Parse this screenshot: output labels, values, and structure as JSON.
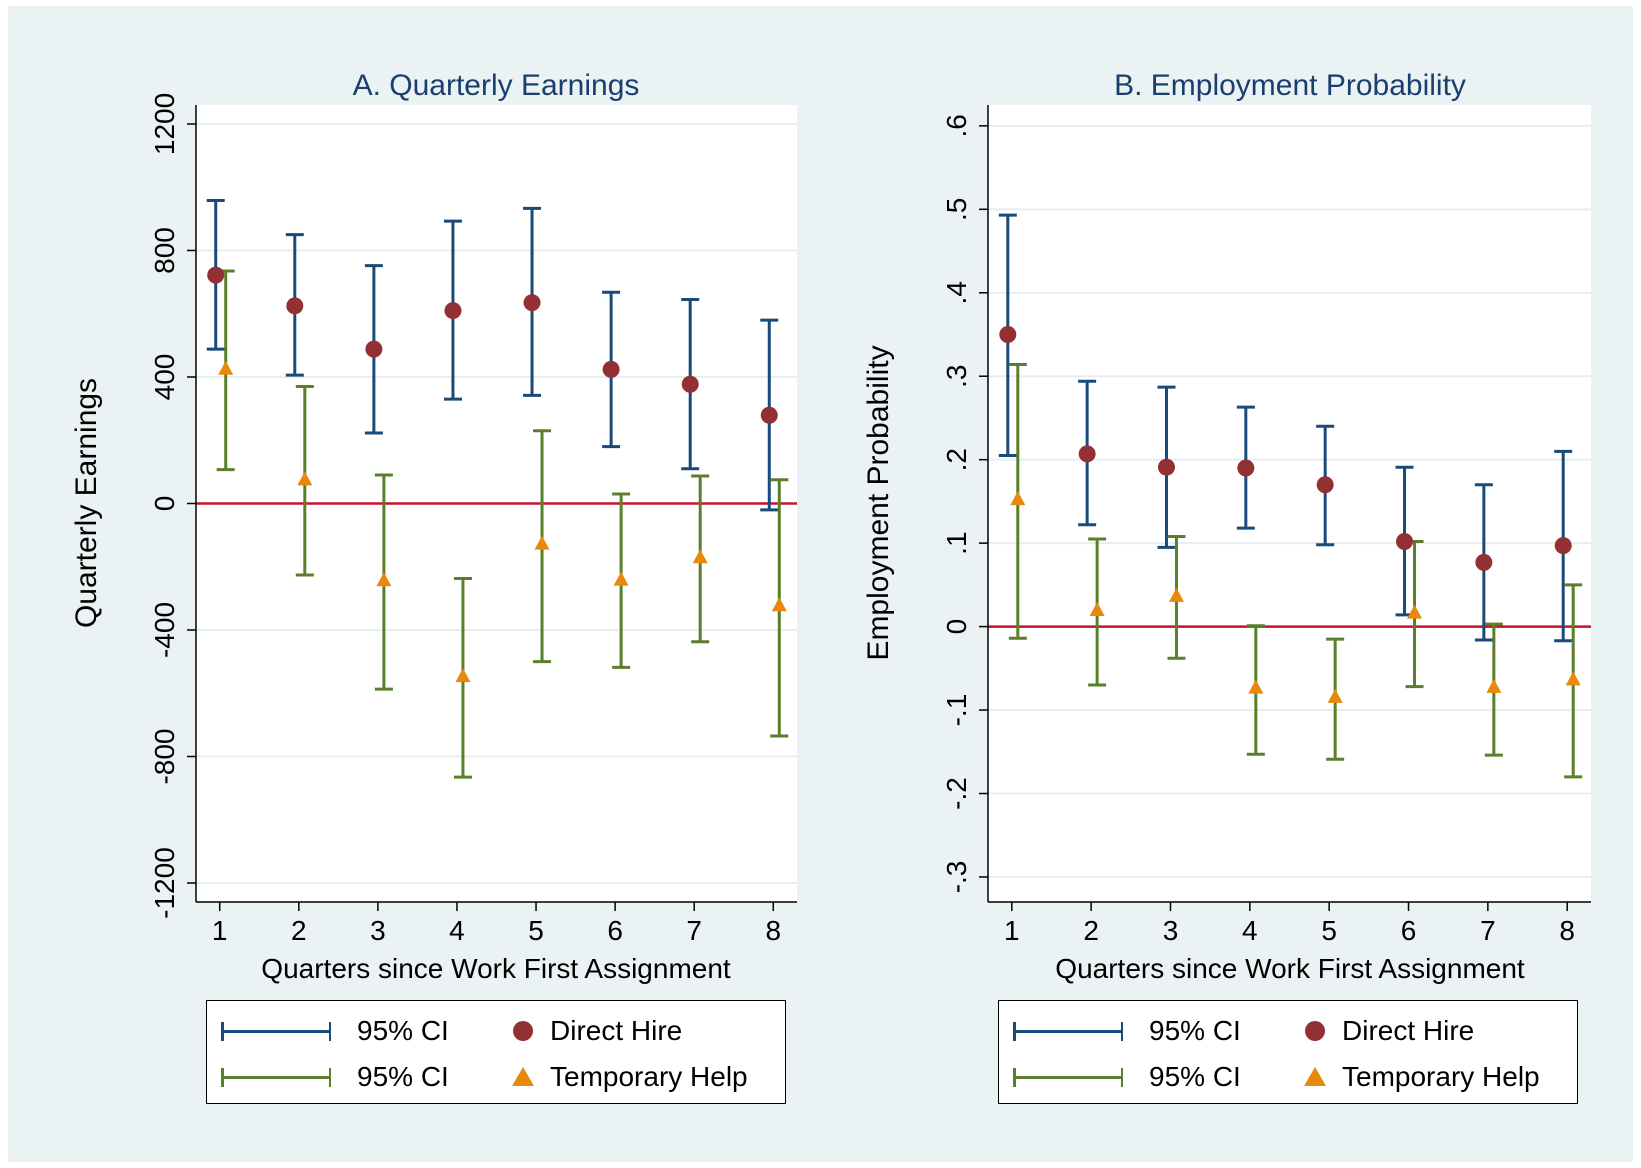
{
  "colors": {
    "outer_bg": "#eaf2f3",
    "plot_bg": "#ffffff",
    "grid": "#e5eff1",
    "zero_line": "#c8102e",
    "direct_ci": "#1a4a7a",
    "temp_ci": "#5a7f2b",
    "direct_marker": "#923034",
    "temp_marker": "#e8890c",
    "title": "#1a3f6f"
  },
  "chart_data": [
    {
      "type": "scatter",
      "title": "A. Quarterly Earnings",
      "xlabel": "Quarters since Work First Assignment",
      "ylabel": "Quarterly Earnings",
      "x": [
        1,
        2,
        3,
        4,
        5,
        6,
        7,
        8
      ],
      "xlim": [
        0.7,
        8.3
      ],
      "ylim": [
        -1260,
        1260
      ],
      "yticks": [
        -1200,
        -800,
        -400,
        0,
        400,
        800,
        1200
      ],
      "ytick_labels": [
        "-1200",
        "-800",
        "-400",
        "0",
        "400",
        "800",
        "1200"
      ],
      "xtick_labels": [
        "1",
        "2",
        "3",
        "4",
        "5",
        "6",
        "7",
        "8"
      ],
      "grid": true,
      "reference_line_y": 0,
      "series": [
        {
          "name": "Direct Hire",
          "marker": "circle",
          "values": [
            722,
            625,
            488,
            610,
            635,
            424,
            377,
            279
          ],
          "ci_low": [
            488,
            406,
            223,
            330,
            342,
            180,
            110,
            -20
          ],
          "ci_high": [
            958,
            850,
            752,
            893,
            933,
            668,
            645,
            580
          ]
        },
        {
          "name": "Temporary Help",
          "marker": "triangle",
          "values": [
            424,
            74,
            -245,
            -548,
            -129,
            -243,
            -172,
            -324
          ],
          "ci_low": [
            107,
            -226,
            -587,
            -865,
            -500,
            -518,
            -437,
            -735
          ],
          "ci_high": [
            735,
            370,
            90,
            -237,
            230,
            30,
            87,
            75
          ]
        }
      ],
      "legend": [
        {
          "label": "95% CI",
          "series": "Direct Hire CI"
        },
        {
          "label": "Direct Hire"
        },
        {
          "label": "95% CI",
          "series": "Temporary Help CI"
        },
        {
          "label": "Temporary Help"
        }
      ]
    },
    {
      "type": "scatter",
      "title": "B. Employment Probability",
      "xlabel": "Quarters since Work First Assignment",
      "ylabel": "Employment Probability",
      "x": [
        1,
        2,
        3,
        4,
        5,
        6,
        7,
        8
      ],
      "xlim": [
        0.7,
        8.3
      ],
      "ylim": [
        -0.33,
        0.625
      ],
      "yticks": [
        -0.3,
        -0.2,
        -0.1,
        0,
        0.1,
        0.2,
        0.3,
        0.4,
        0.5,
        0.6
      ],
      "ytick_labels": [
        "-.3",
        "-.2",
        "-.1",
        "0",
        ".1",
        ".2",
        ".3",
        ".4",
        ".5",
        ".6"
      ],
      "xtick_labels": [
        "1",
        "2",
        "3",
        "4",
        "5",
        "6",
        "7",
        "8"
      ],
      "grid": true,
      "reference_line_y": 0,
      "series": [
        {
          "name": "Direct Hire",
          "marker": "circle",
          "values": [
            0.35,
            0.207,
            0.191,
            0.19,
            0.17,
            0.102,
            0.077,
            0.097
          ],
          "ci_low": [
            0.205,
            0.122,
            0.095,
            0.118,
            0.098,
            0.014,
            -0.016,
            -0.017
          ],
          "ci_high": [
            0.493,
            0.294,
            0.287,
            0.263,
            0.24,
            0.191,
            0.17,
            0.21
          ]
        },
        {
          "name": "Temporary Help",
          "marker": "triangle",
          "values": [
            0.152,
            0.019,
            0.036,
            -0.074,
            -0.085,
            0.016,
            -0.073,
            -0.064
          ],
          "ci_low": [
            -0.014,
            -0.07,
            -0.038,
            -0.153,
            -0.159,
            -0.072,
            -0.154,
            -0.18
          ],
          "ci_high": [
            0.314,
            0.105,
            0.108,
            0.001,
            -0.015,
            0.102,
            0.003,
            0.05
          ]
        }
      ],
      "legend": [
        {
          "label": "95% CI",
          "series": "Direct Hire CI"
        },
        {
          "label": "Direct Hire"
        },
        {
          "label": "95% CI",
          "series": "Temporary Help CI"
        },
        {
          "label": "Temporary Help"
        }
      ]
    }
  ]
}
